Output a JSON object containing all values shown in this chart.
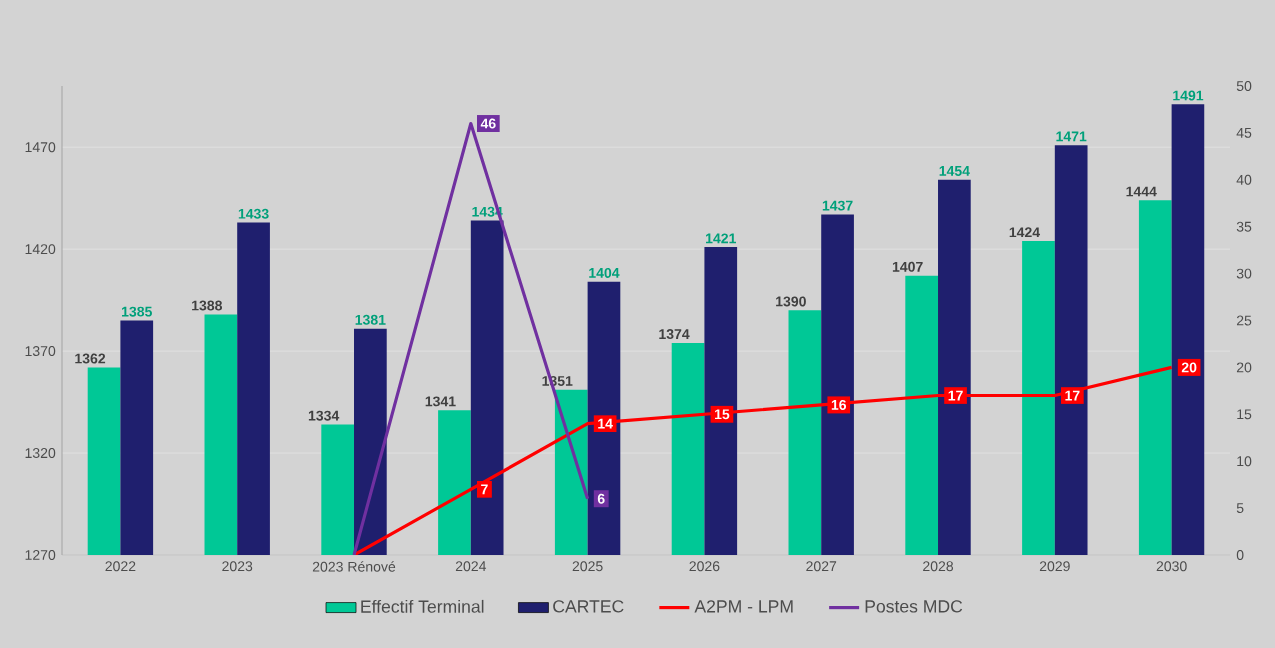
{
  "chart_data": {
    "type": "bar",
    "categories": [
      "2022",
      "2023",
      "2023 Rénové",
      "2024",
      "2025",
      "2026",
      "2027",
      "2028",
      "2029",
      "2030"
    ],
    "series": [
      {
        "name": "Effectif Terminal",
        "color": "#00c896",
        "values": [
          1362,
          1388,
          1334,
          1341,
          1351,
          1374,
          1390,
          1407,
          1424,
          1444
        ],
        "value_labels": [
          "1362",
          "1388",
          "1334",
          "1341",
          "1351",
          "1374",
          "1390",
          "1407",
          "1424",
          "1444"
        ]
      },
      {
        "name": "CARTEC",
        "color": "#1f1f6e",
        "values": [
          1385,
          1433,
          1381,
          1434,
          1404,
          1421,
          1437,
          1454,
          1471,
          1491
        ],
        "value_labels": [
          "1385",
          "1433",
          "1381",
          "1434",
          "1404",
          "1421",
          "1437",
          "1454",
          "1471",
          "1491"
        ]
      },
      {
        "name": "A2PM - LPM",
        "type": "line",
        "axis": "y2",
        "color": "#ff0000",
        "values": [
          null,
          null,
          0,
          7,
          14,
          15,
          16,
          17,
          17,
          20
        ],
        "value_labels": [
          null,
          null,
          null,
          "7",
          "14",
          "15",
          "16",
          "17",
          "17",
          "20"
        ]
      },
      {
        "name": "Postes MDC",
        "type": "line",
        "axis": "y2",
        "color": "#7030a0",
        "values": [
          null,
          null,
          0,
          46,
          6,
          null,
          null,
          null,
          null,
          null
        ],
        "value_labels": [
          null,
          null,
          null,
          "46",
          "6",
          null,
          null,
          null,
          null,
          null
        ]
      }
    ],
    "ylim": [
      1270,
      1500
    ],
    "yticks": [
      1270,
      1320,
      1370,
      1420,
      1470
    ],
    "y2lim": [
      0,
      50
    ],
    "y2ticks": [
      0,
      5,
      10,
      15,
      20,
      25,
      30,
      35,
      40,
      45,
      50
    ],
    "grid": "y",
    "legend": "bottom",
    "line_style": "solid"
  }
}
